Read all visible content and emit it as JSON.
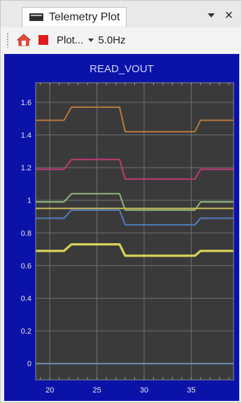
{
  "tab": {
    "title": "Telemetry Plot",
    "close": "×"
  },
  "toolbar": {
    "plot_label": "Plot...",
    "rate": "5.0Hz"
  },
  "icons": {
    "home": "home-icon",
    "stop": "stop-icon",
    "tab": "window-icon"
  },
  "colors": {
    "frame_bg": "#0b12a8",
    "plot_bg": "#3a3a3a",
    "grid": "#707070"
  },
  "chart_data": {
    "type": "line",
    "title": "READ_VOUT",
    "xlim": [
      18.5,
      39.5
    ],
    "ylim": [
      -0.1,
      1.72
    ],
    "xticks": [
      20,
      25,
      30,
      35
    ],
    "yticks": [
      0,
      0.2,
      0.4,
      0.6,
      0.8,
      1,
      1.2,
      1.4,
      1.6
    ],
    "ytick_labels": [
      "0",
      "0.2",
      "0.4",
      "0.6",
      "0.8",
      "1",
      "1.2",
      "1.4",
      "1.6"
    ],
    "grid": true,
    "series": [
      {
        "color": "#b8793a",
        "x": [
          18.5,
          21.5,
          22.3,
          27.4,
          28.0,
          35.4,
          36.0,
          39.5
        ],
        "values": [
          1.49,
          1.49,
          1.57,
          1.57,
          1.42,
          1.42,
          1.49,
          1.49
        ]
      },
      {
        "color": "#c23a78",
        "x": [
          18.5,
          21.5,
          22.3,
          27.4,
          28.0,
          35.4,
          36.0,
          39.5
        ],
        "values": [
          1.19,
          1.19,
          1.25,
          1.25,
          1.13,
          1.13,
          1.19,
          1.19
        ]
      },
      {
        "color": "#8fbc7a",
        "x": [
          18.5,
          21.5,
          22.3,
          27.4,
          28.0,
          35.4,
          36.0,
          39.5
        ],
        "values": [
          0.99,
          0.99,
          1.04,
          1.04,
          0.94,
          0.94,
          0.99,
          0.99
        ]
      },
      {
        "color": "#cdbd5a",
        "x": [
          18.5,
          39.5
        ],
        "values": [
          0.95,
          0.95
        ]
      },
      {
        "color": "#4f7fc4",
        "x": [
          18.5,
          21.5,
          22.3,
          27.4,
          28.0,
          35.4,
          36.0,
          39.5
        ],
        "values": [
          0.89,
          0.89,
          0.94,
          0.94,
          0.85,
          0.85,
          0.89,
          0.89
        ]
      },
      {
        "color": "#d8d35a",
        "x": [
          18.5,
          21.5,
          22.3,
          27.4,
          28.0,
          35.4,
          36.0,
          39.5
        ],
        "values": [
          0.69,
          0.69,
          0.73,
          0.73,
          0.66,
          0.66,
          0.69,
          0.69
        ]
      },
      {
        "color": "#6f8fb8",
        "x": [
          18.5,
          39.5
        ],
        "values": [
          0,
          0
        ]
      }
    ]
  }
}
